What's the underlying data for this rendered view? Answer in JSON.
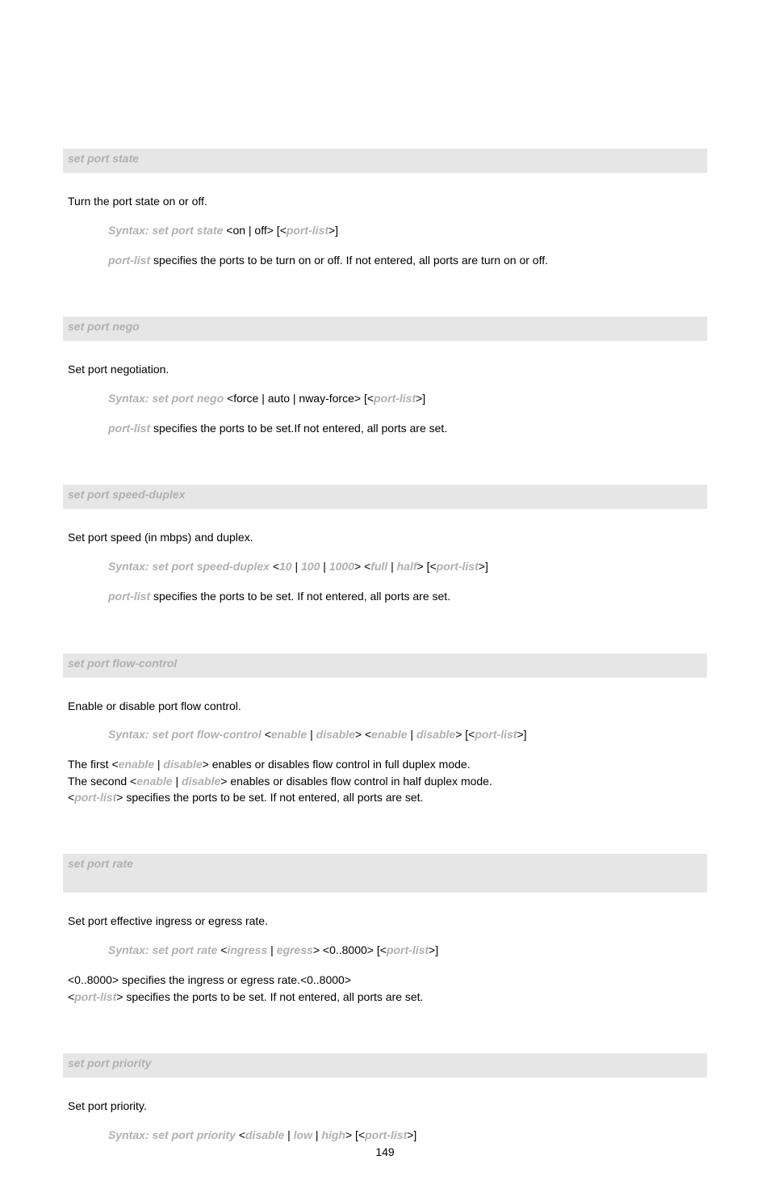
{
  "colors": {
    "heading_bg": "#e6e6e6",
    "lit_text": "#b0b0b0",
    "body_text": "#000000",
    "page_bg": "#ffffff"
  },
  "page_number": "149",
  "sections": [
    {
      "heading": "set port state",
      "description": "Turn the port state on or off.",
      "syntax": [
        {
          "t": "lit",
          "v": "Syntax: set port state "
        },
        {
          "t": "plain",
          "v": "<on | off> [<"
        },
        {
          "t": "lit",
          "v": "port-list"
        },
        {
          "t": "plain",
          "v": ">]"
        }
      ],
      "notes_indent": true,
      "notes": [
        [
          {
            "t": "lit",
            "v": "port-list "
          },
          {
            "t": "plain",
            "v": "specifies the ports to be turn on or off. If not entered, all ports are turn on or off."
          }
        ]
      ]
    },
    {
      "heading": "set port nego",
      "description": "Set port negotiation.",
      "syntax": [
        {
          "t": "lit",
          "v": "Syntax: set port nego "
        },
        {
          "t": "plain",
          "v": "<force | auto | nway-force> [<"
        },
        {
          "t": "lit",
          "v": "port-list"
        },
        {
          "t": "plain",
          "v": ">]"
        }
      ],
      "notes_indent": true,
      "notes": [
        [
          {
            "t": "lit",
            "v": "port-list "
          },
          {
            "t": "plain",
            "v": "specifies the ports to be set.If not entered, all ports are set."
          }
        ]
      ]
    },
    {
      "heading": "set port speed-duplex",
      "description": "Set port speed (in mbps) and duplex.",
      "syntax": [
        {
          "t": "lit",
          "v": "Syntax: set port speed-duplex "
        },
        {
          "t": "plain",
          "v": "<"
        },
        {
          "t": "lit",
          "v": "10"
        },
        {
          "t": "plain",
          "v": " | "
        },
        {
          "t": "lit",
          "v": "100"
        },
        {
          "t": "plain",
          "v": " | "
        },
        {
          "t": "lit",
          "v": "1000"
        },
        {
          "t": "plain",
          "v": "> <"
        },
        {
          "t": "lit",
          "v": "full"
        },
        {
          "t": "plain",
          "v": " | "
        },
        {
          "t": "lit",
          "v": "half"
        },
        {
          "t": "plain",
          "v": "> [<"
        },
        {
          "t": "lit",
          "v": "port-list"
        },
        {
          "t": "plain",
          "v": ">]"
        }
      ],
      "notes_indent": true,
      "notes": [
        [
          {
            "t": "lit",
            "v": "port-list "
          },
          {
            "t": "plain",
            "v": "specifies the ports to be set. If not entered, all ports are set."
          }
        ]
      ]
    },
    {
      "heading": "set port flow-control",
      "description": "Enable or disable port flow control.",
      "syntax": [
        {
          "t": "lit",
          "v": "Syntax: set port flow-control "
        },
        {
          "t": "plain",
          "v": "<"
        },
        {
          "t": "lit",
          "v": "enable"
        },
        {
          "t": "plain",
          "v": " | "
        },
        {
          "t": "lit",
          "v": "disable"
        },
        {
          "t": "plain",
          "v": "> <"
        },
        {
          "t": "lit",
          "v": "enable"
        },
        {
          "t": "plain",
          "v": " | "
        },
        {
          "t": "lit",
          "v": "disable"
        },
        {
          "t": "plain",
          "v": "> [<"
        },
        {
          "t": "lit",
          "v": "port-list"
        },
        {
          "t": "plain",
          "v": ">]"
        }
      ],
      "notes_indent": false,
      "notes": [
        [
          {
            "t": "plain",
            "v": "The first <"
          },
          {
            "t": "lit",
            "v": "enable"
          },
          {
            "t": "plain",
            "v": " | "
          },
          {
            "t": "lit",
            "v": "disable"
          },
          {
            "t": "plain",
            "v": "> enables or disables flow control in full duplex mode."
          }
        ],
        [
          {
            "t": "plain",
            "v": "The second <"
          },
          {
            "t": "lit",
            "v": "enable"
          },
          {
            "t": "plain",
            "v": " | "
          },
          {
            "t": "lit",
            "v": "disable"
          },
          {
            "t": "plain",
            "v": "> enables or disables flow control in half duplex mode."
          }
        ],
        [
          {
            "t": "plain",
            "v": "<"
          },
          {
            "t": "lit",
            "v": "port-list"
          },
          {
            "t": "plain",
            "v": "> specifies the ports to be set. If not entered, all ports are set."
          }
        ]
      ]
    },
    {
      "heading_tall": true,
      "heading": "set port rate",
      "description": "Set port effective ingress or egress rate.",
      "syntax": [
        {
          "t": "lit",
          "v": "Syntax: set port rate "
        },
        {
          "t": "plain",
          "v": "<"
        },
        {
          "t": "lit",
          "v": "ingress"
        },
        {
          "t": "plain",
          "v": " | "
        },
        {
          "t": "lit",
          "v": "egress"
        },
        {
          "t": "plain",
          "v": "> <0..8000> [<"
        },
        {
          "t": "lit",
          "v": "port-list"
        },
        {
          "t": "plain",
          "v": ">]"
        }
      ],
      "notes_indent": false,
      "notes": [
        [
          {
            "t": "plain",
            "v": "<0..8000> specifies the ingress or egress rate.<0..8000>"
          }
        ],
        [
          {
            "t": "plain",
            "v": "<"
          },
          {
            "t": "lit",
            "v": "port-list"
          },
          {
            "t": "plain",
            "v": "> specifies the ports to be set. If not entered, all ports are set."
          }
        ]
      ]
    },
    {
      "heading": "set port priority",
      "description": "Set port priority.",
      "syntax": [
        {
          "t": "lit",
          "v": "Syntax: set port priority "
        },
        {
          "t": "plain",
          "v": "<"
        },
        {
          "t": "lit",
          "v": "disable"
        },
        {
          "t": "plain",
          "v": " | "
        },
        {
          "t": "lit",
          "v": "low"
        },
        {
          "t": "plain",
          "v": " | "
        },
        {
          "t": "lit",
          "v": "high"
        },
        {
          "t": "plain",
          "v": "> [<"
        },
        {
          "t": "lit",
          "v": "port-list"
        },
        {
          "t": "plain",
          "v": ">]"
        }
      ],
      "notes_indent": false,
      "notes": []
    }
  ]
}
